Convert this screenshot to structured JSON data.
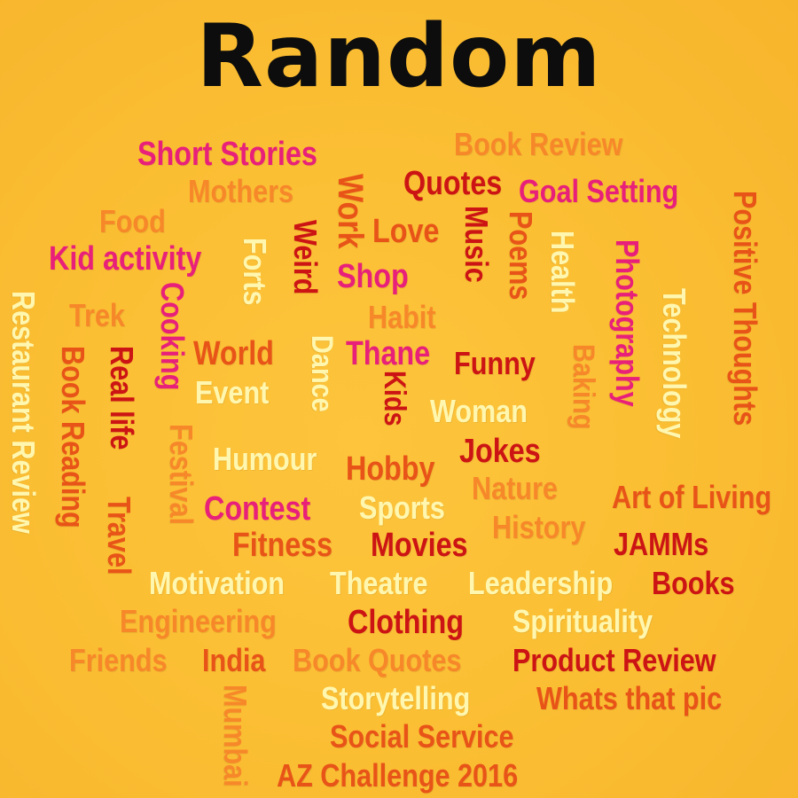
{
  "title": "Random",
  "colors": {
    "background": "#fbbf34",
    "title": "#0d0d0d",
    "magenta": "#e8207a",
    "orange": "#f7882a",
    "deep_orange": "#e85418",
    "red": "#cc1414",
    "cream": "#fff7b0"
  },
  "words": [
    {
      "text": "Short Stories",
      "color": "magenta",
      "vertical": false
    },
    {
      "text": "Book Review",
      "color": "orange",
      "vertical": false
    },
    {
      "text": "Mothers",
      "color": "orange",
      "vertical": false
    },
    {
      "text": "Work",
      "color": "deep_orange",
      "vertical": true
    },
    {
      "text": "Quotes",
      "color": "red",
      "vertical": false
    },
    {
      "text": "Goal Setting",
      "color": "magenta",
      "vertical": false
    },
    {
      "text": "Food",
      "color": "orange",
      "vertical": false
    },
    {
      "text": "Weird",
      "color": "red",
      "vertical": true
    },
    {
      "text": "Love",
      "color": "deep_orange",
      "vertical": false
    },
    {
      "text": "Music",
      "color": "red",
      "vertical": true
    },
    {
      "text": "Poems",
      "color": "deep_orange",
      "vertical": true
    },
    {
      "text": "Health",
      "color": "cream",
      "vertical": true
    },
    {
      "text": "Photography",
      "color": "magenta",
      "vertical": true
    },
    {
      "text": "Positive Thoughts",
      "color": "deep_orange",
      "vertical": true
    },
    {
      "text": "Kid activity",
      "color": "magenta",
      "vertical": false
    },
    {
      "text": "Forts",
      "color": "cream",
      "vertical": true
    },
    {
      "text": "Shop",
      "color": "magenta",
      "vertical": false
    },
    {
      "text": "Restaurant Review",
      "color": "cream",
      "vertical": true
    },
    {
      "text": "Trek",
      "color": "orange",
      "vertical": false
    },
    {
      "text": "Cooking",
      "color": "magenta",
      "vertical": true
    },
    {
      "text": "Habit",
      "color": "orange",
      "vertical": false
    },
    {
      "text": "Technology",
      "color": "cream",
      "vertical": true
    },
    {
      "text": "World",
      "color": "deep_orange",
      "vertical": false
    },
    {
      "text": "Dance",
      "color": "cream",
      "vertical": true
    },
    {
      "text": "Thane",
      "color": "magenta",
      "vertical": false
    },
    {
      "text": "Funny",
      "color": "red",
      "vertical": false
    },
    {
      "text": "Baking",
      "color": "orange",
      "vertical": true
    },
    {
      "text": "Book Reading",
      "color": "deep_orange",
      "vertical": true
    },
    {
      "text": "Real life",
      "color": "red",
      "vertical": true
    },
    {
      "text": "Event",
      "color": "cream",
      "vertical": false
    },
    {
      "text": "Kids",
      "color": "red",
      "vertical": true
    },
    {
      "text": "Woman",
      "color": "cream",
      "vertical": false
    },
    {
      "text": "Festival",
      "color": "orange",
      "vertical": true
    },
    {
      "text": "Humour",
      "color": "cream",
      "vertical": false
    },
    {
      "text": "Hobby",
      "color": "deep_orange",
      "vertical": false
    },
    {
      "text": "Jokes",
      "color": "red",
      "vertical": false
    },
    {
      "text": "Nature",
      "color": "orange",
      "vertical": false
    },
    {
      "text": "Art of Living",
      "color": "deep_orange",
      "vertical": false
    },
    {
      "text": "Contest",
      "color": "magenta",
      "vertical": false
    },
    {
      "text": "Sports",
      "color": "cream",
      "vertical": false
    },
    {
      "text": "History",
      "color": "orange",
      "vertical": false
    },
    {
      "text": "Travel",
      "color": "deep_orange",
      "vertical": true
    },
    {
      "text": "Fitness",
      "color": "deep_orange",
      "vertical": false
    },
    {
      "text": "Movies",
      "color": "red",
      "vertical": false
    },
    {
      "text": "JAMMs",
      "color": "red",
      "vertical": false
    },
    {
      "text": "Motivation",
      "color": "cream",
      "vertical": false
    },
    {
      "text": "Theatre",
      "color": "cream",
      "vertical": false
    },
    {
      "text": "Leadership",
      "color": "cream",
      "vertical": false
    },
    {
      "text": "Books",
      "color": "red",
      "vertical": false
    },
    {
      "text": "Engineering",
      "color": "orange",
      "vertical": false
    },
    {
      "text": "Clothing",
      "color": "red",
      "vertical": false
    },
    {
      "text": "Spirituality",
      "color": "cream",
      "vertical": false
    },
    {
      "text": "Friends",
      "color": "orange",
      "vertical": false
    },
    {
      "text": "India",
      "color": "deep_orange",
      "vertical": false
    },
    {
      "text": "Book Quotes",
      "color": "orange",
      "vertical": false
    },
    {
      "text": "Product Review",
      "color": "red",
      "vertical": false
    },
    {
      "text": "Mumbai",
      "color": "orange",
      "vertical": true
    },
    {
      "text": "Storytelling",
      "color": "cream",
      "vertical": false
    },
    {
      "text": "Whats that pic",
      "color": "deep_orange",
      "vertical": false
    },
    {
      "text": "Social Service",
      "color": "deep_orange",
      "vertical": false
    },
    {
      "text": "AZ Challenge 2016",
      "color": "deep_orange",
      "vertical": false
    }
  ]
}
